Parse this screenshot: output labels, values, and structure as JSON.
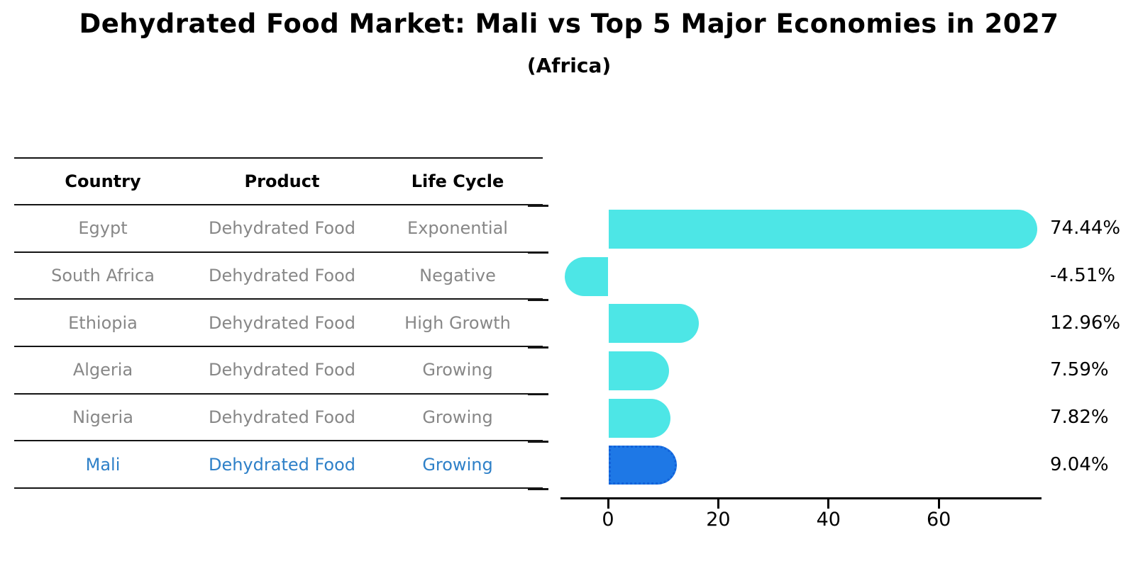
{
  "title": "Dehydrated Food Market: Mali vs Top 5 Major Economies in 2027",
  "subtitle": "(Africa)",
  "table": {
    "headers": [
      "Country",
      "Product",
      "Life Cycle"
    ],
    "rows": [
      {
        "country": "Egypt",
        "product": "Dehydrated Food",
        "life_cycle": "Exponential",
        "highlight": false
      },
      {
        "country": "South Africa",
        "product": "Dehydrated Food",
        "life_cycle": "Negative",
        "highlight": false
      },
      {
        "country": "Ethiopia",
        "product": "Dehydrated Food",
        "life_cycle": "High Growth",
        "highlight": false
      },
      {
        "country": "Algeria",
        "product": "Dehydrated Food",
        "life_cycle": "Growing",
        "highlight": false
      },
      {
        "country": "Nigeria",
        "product": "Dehydrated Food",
        "life_cycle": "Growing",
        "highlight": true
      }
    ],
    "highlight_row": {
      "country": "Mali",
      "product": "Dehydrated Food",
      "life_cycle": "Growing"
    }
  },
  "chart_data": {
    "type": "bar",
    "orientation": "horizontal",
    "title": "Dehydrated Food Market: Mali vs Top 5 Major Economies in 2027 (Africa)",
    "categories": [
      "Egypt",
      "South Africa",
      "Ethiopia",
      "Algeria",
      "Nigeria",
      "Mali"
    ],
    "values": [
      74.44,
      -4.51,
      12.96,
      7.59,
      7.82,
      9.04
    ],
    "value_labels": [
      "74.44%",
      "-4.51%",
      "12.96%",
      "7.59%",
      "7.82%",
      "9.04%"
    ],
    "unit": "%",
    "xticks": [
      0,
      20,
      40,
      60
    ],
    "xtick_labels": [
      "0",
      "20",
      "40",
      "60"
    ],
    "xlim": [
      -8.6,
      79
    ],
    "grid": false,
    "legend": false,
    "highlight_index": 5,
    "bar_color": "#4de6e6",
    "highlight_bar_color": "#1e78e6",
    "highlight_border_color": "#1161d9",
    "highlight_text_color": "#2e80c8",
    "text_color": "#878787"
  }
}
